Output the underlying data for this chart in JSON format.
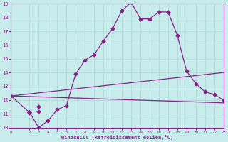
{
  "bg_color": "#c8ecec",
  "grid_color": "#b0d8d8",
  "line_color": "#882288",
  "xlabel": "Windchill (Refroidissement éolien,°C)",
  "xlim": [
    0,
    23
  ],
  "ylim": [
    10,
    19
  ],
  "yticks": [
    10,
    11,
    12,
    13,
    14,
    15,
    16,
    17,
    18,
    19
  ],
  "xticks": [
    0,
    2,
    3,
    4,
    5,
    6,
    7,
    8,
    9,
    10,
    11,
    12,
    13,
    14,
    15,
    16,
    17,
    18,
    19,
    20,
    21,
    22,
    23
  ],
  "line1_x": [
    0,
    2,
    3,
    4,
    5,
    6,
    7,
    8,
    9,
    10,
    11,
    12,
    13,
    14,
    15,
    16,
    17,
    18,
    19,
    20,
    21,
    22,
    23
  ],
  "line1_y": [
    12.3,
    11.1,
    10.0,
    10.5,
    11.3,
    11.6,
    13.9,
    14.9,
    15.3,
    16.3,
    17.2,
    18.5,
    19.1,
    17.9,
    17.9,
    18.4,
    18.4,
    16.7,
    14.1,
    13.2,
    12.6,
    12.4,
    12.0
  ],
  "line2_x": [
    0,
    23
  ],
  "line2_y": [
    12.3,
    11.8
  ],
  "line3_x": [
    0,
    23
  ],
  "line3_y": [
    12.3,
    14.0
  ],
  "marker_pts_line2": [
    [
      2,
      11.05
    ],
    [
      3,
      11.15
    ]
  ],
  "marker_pts_line3": [
    [
      2,
      11.1
    ],
    [
      3,
      11.55
    ]
  ]
}
